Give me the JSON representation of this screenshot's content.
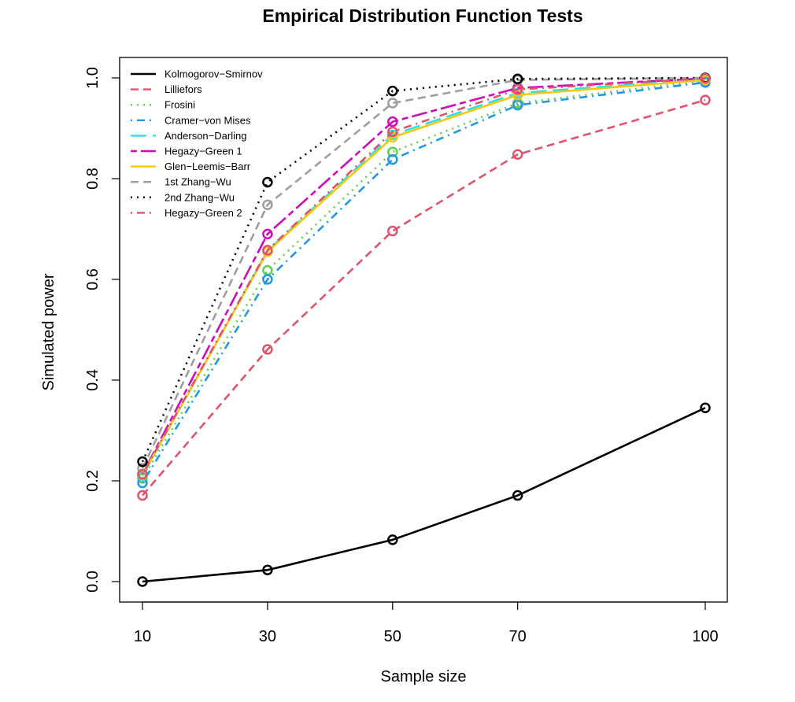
{
  "chart_data": {
    "type": "line",
    "title": "Empirical Distribution Function Tests",
    "xlabel": "Sample size",
    "ylabel": "Simulated power",
    "x": [
      10,
      30,
      50,
      70,
      100
    ],
    "x_tick_labels": [
      "10",
      "30",
      "50",
      "70",
      "100"
    ],
    "y_ticks": [
      0.0,
      0.2,
      0.4,
      0.6,
      0.8,
      1.0
    ],
    "y_tick_labels": [
      "0.0",
      "0.2",
      "0.4",
      "0.6",
      "0.8",
      "1.0"
    ],
    "ylim": [
      0,
      1
    ],
    "grid": false,
    "legend_position": "top-left",
    "series": [
      {
        "name": "Kolmogorov−Smirnov",
        "color": "#000000",
        "dash": "solid",
        "values": [
          0.0,
          0.023,
          0.083,
          0.171,
          0.345
        ]
      },
      {
        "name": "Lilliefors",
        "color": "#DF536B",
        "dash": "dashed",
        "values": [
          0.171,
          0.461,
          0.696,
          0.848,
          0.956
        ]
      },
      {
        "name": "Frosini",
        "color": "#61D04F",
        "dash": "dotted",
        "values": [
          0.205,
          0.618,
          0.853,
          0.95,
          0.995
        ]
      },
      {
        "name": "Cramer−von Mises",
        "color": "#2297E6",
        "dash": "dotdash",
        "values": [
          0.196,
          0.6,
          0.838,
          0.946,
          0.991
        ]
      },
      {
        "name": "Anderson−Darling",
        "color": "#28E2E5",
        "dash": "longdash",
        "values": [
          0.21,
          0.657,
          0.887,
          0.97,
          0.997
        ]
      },
      {
        "name": "Hegazy−Green 1",
        "color": "#CD0BBC",
        "dash": "twodash",
        "values": [
          0.213,
          0.69,
          0.913,
          0.98,
          0.999
        ]
      },
      {
        "name": "Glen−Leemis−Barr",
        "color": "#F5C710",
        "dash": "solid",
        "values": [
          0.212,
          0.655,
          0.882,
          0.966,
          0.996
        ]
      },
      {
        "name": "1st Zhang−Wu",
        "color": "#9E9E9E",
        "dash": "dashed",
        "values": [
          0.225,
          0.748,
          0.95,
          0.996,
          1.0
        ]
      },
      {
        "name": "2nd Zhang−Wu",
        "color": "#000000",
        "dash": "dotted",
        "values": [
          0.238,
          0.793,
          0.974,
          0.998,
          1.0
        ]
      },
      {
        "name": "Hegazy−Green 2",
        "color": "#DF536B",
        "dash": "dotdash",
        "values": [
          0.213,
          0.658,
          0.893,
          0.977,
          0.999
        ]
      }
    ]
  }
}
